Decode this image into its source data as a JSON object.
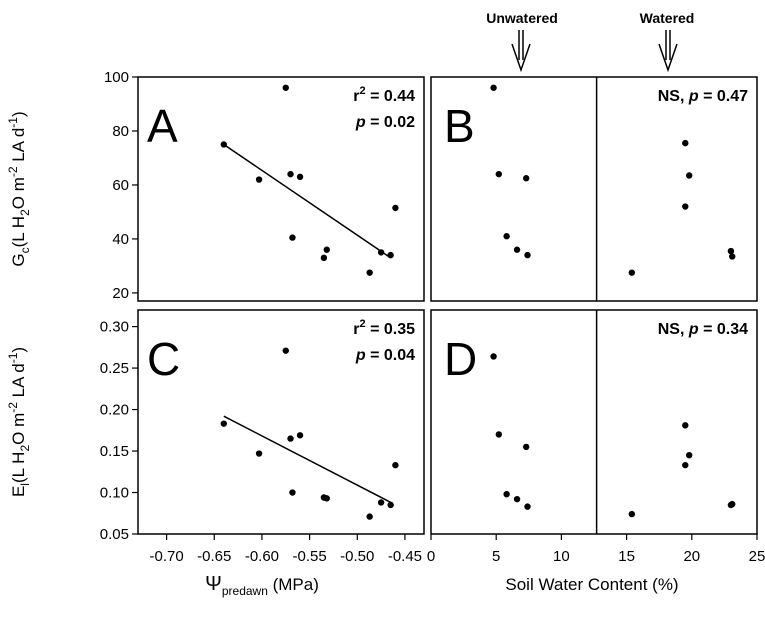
{
  "axes": {
    "x_left_title_main": "Ψ",
    "x_left_title_sub": "predawn",
    "x_left_title_unit": " (MPa)",
    "x_right_title": "Soil Water Content  (%)",
    "y_top_title": {
      "main": "G",
      "sub": "c",
      "rest": "(L H",
      "sub2": "2",
      "rest2": "O m",
      "sup": "-2",
      "rest3": " LA d",
      "sup2": "-1",
      "end": ")"
    },
    "y_bottom_title": {
      "main": "E",
      "sub": "l",
      "rest": "(L H",
      "sub2": "2",
      "rest2": "O m",
      "sup": "-2",
      "rest3": " LA d",
      "sup2": "-1",
      "end": ")"
    },
    "x_left_ticks": [
      "-0.70",
      "-0.65",
      "-0.60",
      "-0.55",
      "-0.50",
      "-0.45"
    ],
    "x_right_ticks": [
      "0",
      "5",
      "10",
      "15",
      "20",
      "25"
    ],
    "y_top_ticks": [
      "20",
      "40",
      "60",
      "80",
      "100"
    ],
    "y_bottom_ticks": [
      "0.05",
      "0.10",
      "0.15",
      "0.20",
      "0.25",
      "0.30"
    ]
  },
  "annotations": {
    "unwatered": "Unwatered",
    "watered": "Watered"
  },
  "chart_data": [
    {
      "panel": "A",
      "type": "scatter",
      "xlim": [
        -0.73,
        -0.43
      ],
      "ylim": [
        17,
        100
      ],
      "stats": {
        "line1_a": "r",
        "line1_sup": "2",
        "line1_b": " = 0.44",
        "line2_p": "p",
        "line2_b": " = 0.02"
      },
      "points": [
        [
          -0.64,
          75
        ],
        [
          -0.603,
          62
        ],
        [
          -0.575,
          96
        ],
        [
          -0.57,
          64
        ],
        [
          -0.568,
          40.5
        ],
        [
          -0.56,
          63
        ],
        [
          -0.535,
          33
        ],
        [
          -0.532,
          36
        ],
        [
          -0.487,
          27.5
        ],
        [
          -0.475,
          35
        ],
        [
          -0.465,
          34
        ],
        [
          -0.46,
          51.5
        ]
      ],
      "fit": [
        [
          -0.64,
          75
        ],
        [
          -0.465,
          33
        ]
      ]
    },
    {
      "panel": "B",
      "type": "scatter",
      "xlim": [
        0,
        25
      ],
      "ylim": [
        17,
        100
      ],
      "divider_x": 12.7,
      "stats": {
        "ns": "NS, ",
        "p": "p",
        "rest": " = 0.47"
      },
      "points": [
        [
          4.8,
          96
        ],
        [
          5.2,
          64
        ],
        [
          5.8,
          41
        ],
        [
          6.6,
          36
        ],
        [
          7.3,
          62.5
        ],
        [
          7.4,
          34
        ],
        [
          15.4,
          27.5
        ],
        [
          19.5,
          75.5
        ],
        [
          19.5,
          52
        ],
        [
          19.8,
          63.5
        ],
        [
          23.0,
          35.5
        ],
        [
          23.1,
          33.5
        ]
      ]
    },
    {
      "panel": "C",
      "type": "scatter",
      "xlim": [
        -0.73,
        -0.43
      ],
      "ylim": [
        0.05,
        0.32
      ],
      "stats": {
        "line1_a": "r",
        "line1_sup": "2",
        "line1_b": " = 0.35",
        "line2_p": "p",
        "line2_b": " = 0.04"
      },
      "points": [
        [
          -0.64,
          0.183
        ],
        [
          -0.603,
          0.147
        ],
        [
          -0.575,
          0.271
        ],
        [
          -0.57,
          0.165
        ],
        [
          -0.568,
          0.1
        ],
        [
          -0.56,
          0.169
        ],
        [
          -0.535,
          0.094
        ],
        [
          -0.532,
          0.093
        ],
        [
          -0.487,
          0.071
        ],
        [
          -0.475,
          0.088
        ],
        [
          -0.465,
          0.085
        ],
        [
          -0.46,
          0.133
        ]
      ],
      "fit": [
        [
          -0.64,
          0.192
        ],
        [
          -0.463,
          0.087
        ]
      ]
    },
    {
      "panel": "D",
      "type": "scatter",
      "xlim": [
        0,
        25
      ],
      "ylim": [
        0.05,
        0.32
      ],
      "divider_x": 12.7,
      "stats": {
        "ns": "NS, ",
        "p": "p",
        "rest": " = 0.34"
      },
      "points": [
        [
          4.8,
          0.264
        ],
        [
          5.2,
          0.17
        ],
        [
          5.8,
          0.098
        ],
        [
          6.6,
          0.092
        ],
        [
          7.3,
          0.155
        ],
        [
          7.4,
          0.083
        ],
        [
          15.4,
          0.074
        ],
        [
          19.5,
          0.181
        ],
        [
          19.5,
          0.133
        ],
        [
          19.8,
          0.145
        ],
        [
          23.0,
          0.085
        ],
        [
          23.1,
          0.086
        ]
      ]
    }
  ]
}
